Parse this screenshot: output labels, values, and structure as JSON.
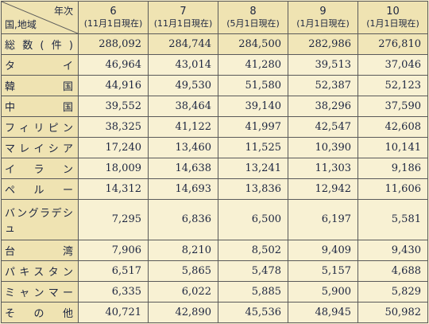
{
  "table": {
    "corner": {
      "top": "年次",
      "bottom": "国,地域"
    },
    "columns": [
      {
        "year": "6",
        "date": "(11月1日現在)"
      },
      {
        "year": "7",
        "date": "(11月1日現在)"
      },
      {
        "year": "8",
        "date": "(5月1日現在)"
      },
      {
        "year": "9",
        "date": "(1月1日現在)"
      },
      {
        "year": "10",
        "date": "(1月1日現在)"
      }
    ],
    "rows": [
      [
        "総数(件)",
        "288,092",
        "284,744",
        "284,500",
        "282,986",
        "276,810"
      ],
      [
        "タイ",
        "46,964",
        "43,014",
        "41,280",
        "39,513",
        "37,046"
      ],
      [
        "韓国",
        "44,916",
        "49,530",
        "51,580",
        "52,387",
        "52,123"
      ],
      [
        "中国",
        "39,552",
        "38,464",
        "39,140",
        "38,296",
        "37,590"
      ],
      [
        "フィリピン",
        "38,325",
        "41,122",
        "41,997",
        "42,547",
        "42,608"
      ],
      [
        "マレイシア",
        "17,240",
        "13,460",
        "11,525",
        "10,390",
        "10,141"
      ],
      [
        "イラン",
        "18,009",
        "14,638",
        "13,241",
        "11,303",
        "9,186"
      ],
      [
        "ペルー",
        "14,312",
        "14,693",
        "13,836",
        "12,942",
        "11,606"
      ],
      [
        "バングラデシュ",
        "7,295",
        "6,836",
        "6,500",
        "6,197",
        "5,581"
      ],
      [
        "台湾",
        "7,906",
        "8,210",
        "8,502",
        "9,409",
        "9,430"
      ],
      [
        "パキスタン",
        "6,517",
        "5,865",
        "5,478",
        "5,157",
        "4,688"
      ],
      [
        "ミャンマー",
        "6,335",
        "6,022",
        "5,885",
        "5,900",
        "5,829"
      ],
      [
        "その他",
        "40,721",
        "42,890",
        "45,536",
        "48,945",
        "50,982"
      ]
    ]
  }
}
